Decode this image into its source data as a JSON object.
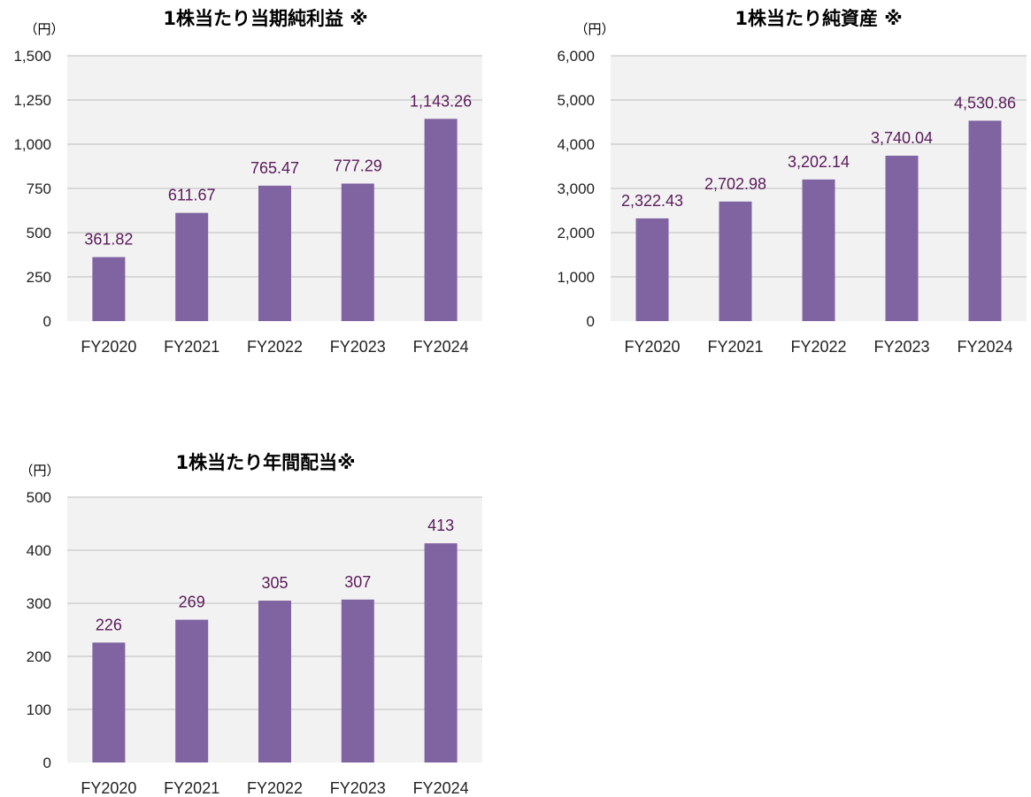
{
  "colors": {
    "bar": "#8064a2",
    "label": "#5a1a5a",
    "plot_bg": "#f2f2f2",
    "grid": "#bfbfbf"
  },
  "chart_data": [
    {
      "type": "bar",
      "title": "1株当たり当期純利益 ※",
      "unit": "（円）",
      "categories": [
        "FY2020",
        "FY2021",
        "FY2022",
        "FY2023",
        "FY2024"
      ],
      "values": [
        361.82,
        611.67,
        765.47,
        777.29,
        1143.26
      ],
      "labels": [
        "361.82",
        "611.67",
        "765.47",
        "777.29",
        "1,143.26"
      ],
      "ylim": [
        0,
        1500
      ],
      "yticks": [
        0,
        250,
        500,
        750,
        1000,
        1250,
        1500
      ],
      "ytick_labels": [
        "0",
        "250",
        "500",
        "750",
        "1,000",
        "1,250",
        "1,500"
      ],
      "grid": true
    },
    {
      "type": "bar",
      "title": "1株当たり純資産 ※",
      "unit": "（円）",
      "categories": [
        "FY2020",
        "FY2021",
        "FY2022",
        "FY2023",
        "FY2024"
      ],
      "values": [
        2322.43,
        2702.98,
        3202.14,
        3740.04,
        4530.86
      ],
      "labels": [
        "2,322.43",
        "2,702.98",
        "3,202.14",
        "3,740.04",
        "4,530.86"
      ],
      "ylim": [
        0,
        6000
      ],
      "yticks": [
        0,
        1000,
        2000,
        3000,
        4000,
        5000,
        6000
      ],
      "ytick_labels": [
        "0",
        "1,000",
        "2,000",
        "3,000",
        "4,000",
        "5,000",
        "6,000"
      ],
      "grid": true
    },
    {
      "type": "bar",
      "title": "1株当たり年間配当※",
      "unit": "（円）",
      "categories": [
        "FY2020",
        "FY2021",
        "FY2022",
        "FY2023",
        "FY2024"
      ],
      "values": [
        226,
        269,
        305,
        307,
        413
      ],
      "labels": [
        "226",
        "269",
        "305",
        "307",
        "413"
      ],
      "ylim": [
        0,
        500
      ],
      "yticks": [
        0,
        100,
        200,
        300,
        400,
        500
      ],
      "ytick_labels": [
        "0",
        "100",
        "200",
        "300",
        "400",
        "500"
      ],
      "grid": true
    }
  ]
}
